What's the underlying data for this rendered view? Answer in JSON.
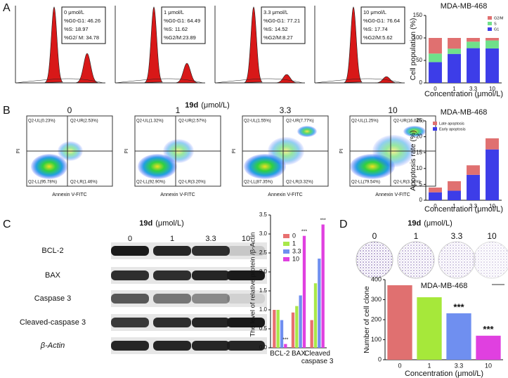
{
  "panel_labels": [
    "A",
    "B",
    "C",
    "D"
  ],
  "cell_cycle": [
    {
      "lines": [
        "0 μmol/L",
        "%G0-G1: 46.26",
        "%S: 18.97",
        "%G2/ M: 34.78"
      ]
    },
    {
      "lines": [
        "1 μmol/L",
        "%G0-G1: 64.49",
        "%S: 11.62",
        "%G2/M:23.89"
      ]
    },
    {
      "lines": [
        "3.3 μmol/L",
        "%G0-G1: 77.21",
        "%S: 14.52",
        "%G2/M:8.27"
      ]
    },
    {
      "lines": [
        "10 μmol/L",
        "%G0-G1: 76.64",
        "%S: 17.74",
        "%G2/M:5.62"
      ]
    }
  ],
  "apoptosis": {
    "title_bold": "19d",
    "title_unit": "(μmol/L)",
    "x_axis": "Annexin V-FITC",
    "y_axis": "PI",
    "plots": [
      {
        "label": "0",
        "ul": "Q2-UL(0.23%)",
        "ur": "Q2-UR(2.53%)",
        "ll": "Q2-LL(95.78%)",
        "lr": "Q2-LR(1.46%)"
      },
      {
        "label": "1",
        "ul": "Q2-UL(1.32%)",
        "ur": "Q2-UR(2.57%)",
        "ll": "Q2-LL(92.90%)",
        "lr": "Q2-LR(3.20%)"
      },
      {
        "label": "3.3",
        "ul": "Q2-UL(1.55%)",
        "ur": "Q2-UR(7.77%)",
        "ll": "Q2-LL(87.35%)",
        "lr": "Q2-LR(3.32%)"
      },
      {
        "label": "10",
        "ul": "Q2-UL(1.25%)",
        "ur": "Q2-UR(16.04%)",
        "ll": "Q2-LL(79.54%)",
        "lr": "Q2-LR(3.16%)"
      }
    ]
  },
  "western_blot": {
    "title_bold": "19d",
    "title_unit": "(μmol/L)",
    "concentrations": [
      "0",
      "1",
      "3.3",
      "10"
    ],
    "proteins": [
      "BCL-2",
      "BAX",
      "Caspase 3",
      "Cleaved-caspase 3",
      "β-Actin"
    ]
  },
  "colony": {
    "title_bold": "19d",
    "title_unit": "(μmol/L)",
    "concentrations": [
      "0",
      "1",
      "3.3",
      "10"
    ]
  },
  "chart_data": [
    {
      "type": "bar",
      "stacked": true,
      "title": "MDA-MB-468",
      "ylabel": "Cell population (%)",
      "xlabel": "Concentration (μmol/L)",
      "categories": [
        "0",
        "1",
        "3.3",
        "10"
      ],
      "series": [
        {
          "name": "G1",
          "color": "#3d3de8",
          "values": [
            46.26,
            64.49,
            77.21,
            76.64
          ]
        },
        {
          "name": "S",
          "color": "#6fe08a",
          "values": [
            18.97,
            11.62,
            14.52,
            17.74
          ]
        },
        {
          "name": "G2/M",
          "color": "#e07070",
          "values": [
            34.78,
            23.89,
            8.27,
            5.62
          ]
        }
      ],
      "ylim": [
        0,
        150
      ],
      "yticks": [
        0,
        50,
        100,
        150
      ],
      "legend": "upper right"
    },
    {
      "type": "bar",
      "stacked": true,
      "title": "MDA-MB-468",
      "ylabel": "Apoptosis rate (%)",
      "xlabel": "Concentration (μmol/L)",
      "categories": [
        "0",
        "1",
        "3.3",
        "10"
      ],
      "series": [
        {
          "name": "Early apoptosis",
          "color": "#3d3de8",
          "values": [
            2.5,
            3,
            8,
            16
          ]
        },
        {
          "name": "Late apoptosis",
          "color": "#e07070",
          "values": [
            1.5,
            3,
            3,
            3.5
          ]
        }
      ],
      "ylim": [
        0,
        25
      ],
      "yticks": [
        0,
        5,
        10,
        15,
        20,
        25
      ],
      "legend": "upper left"
    },
    {
      "type": "bar",
      "grouped": true,
      "ylabel": "The level of relative protein /β-Actin",
      "categories": [
        "BCL-2",
        "BAX",
        "Cleaved caspase 3"
      ],
      "series": [
        {
          "name": "0",
          "color": "#e87070",
          "values": [
            1.0,
            0.93,
            0.73
          ]
        },
        {
          "name": "1",
          "color": "#a8e84a",
          "values": [
            1.0,
            1.1,
            1.7
          ]
        },
        {
          "name": "3.3",
          "color": "#6f8ff0",
          "values": [
            0.73,
            1.38,
            2.35
          ]
        },
        {
          "name": "10",
          "color": "#e040e0",
          "values": [
            0.1,
            2.95,
            3.25
          ],
          "significance": [
            "***",
            "***",
            "***"
          ]
        }
      ],
      "ylim": [
        0,
        3.5
      ],
      "yticks": [
        {
          "value": 0,
          "label": "0.0"
        },
        {
          "value": 0.5,
          "label": "0.5"
        },
        {
          "value": 1,
          "label": "1.0"
        },
        {
          "value": 1.5,
          "label": "1.5"
        },
        {
          "value": 2,
          "label": "2.0"
        },
        {
          "value": 2.5,
          "label": "2.5"
        },
        {
          "value": 3,
          "label": "3.0"
        },
        {
          "value": 3.5,
          "label": "3.5"
        }
      ],
      "legend": "upper left"
    },
    {
      "type": "bar",
      "title": "MDA-MB-468",
      "ylabel": "Number of cell clone",
      "xlabel": "Concentration (μmol/L)",
      "categories": [
        "0",
        "1",
        "3.3",
        "10"
      ],
      "values": [
        372,
        312,
        232,
        120
      ],
      "colors": [
        "#e07070",
        "#a6e83a",
        "#6f8ff0",
        "#e040e0"
      ],
      "significance": [
        null,
        null,
        "***",
        "***"
      ],
      "ylim": [
        0,
        400
      ],
      "yticks": [
        0,
        100,
        200,
        300,
        400
      ]
    }
  ]
}
